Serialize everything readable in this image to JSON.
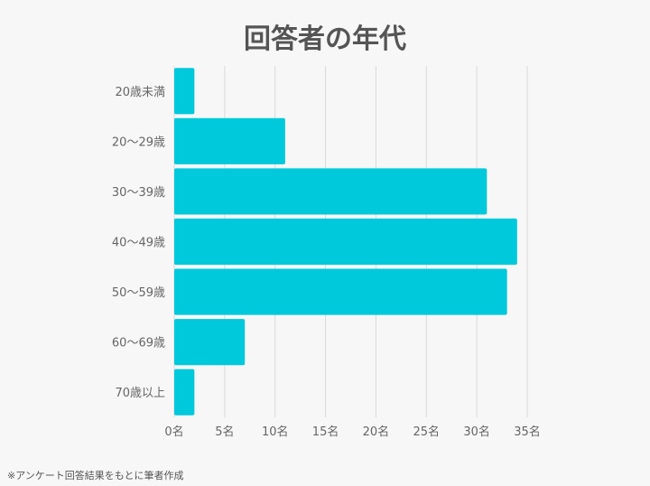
{
  "chart_data": {
    "type": "bar",
    "orientation": "horizontal",
    "title": "回答者の年代",
    "categories": [
      "20歳未満",
      "20〜29歳",
      "30〜39歳",
      "40〜49歳",
      "50〜59歳",
      "60〜69歳",
      "70歳以上"
    ],
    "values": [
      2,
      11,
      31,
      34,
      33,
      7,
      2
    ],
    "xlim": [
      0,
      35
    ],
    "xticks": [
      0,
      5,
      10,
      15,
      20,
      25,
      30,
      35
    ],
    "xtick_labels": [
      "0名",
      "5名",
      "10名",
      "15名",
      "20名",
      "25名",
      "30名",
      "35名"
    ],
    "grid": "vertical",
    "bar_color": "#00c9dc",
    "grid_color": "#d9d9d9"
  },
  "footnote": "※アンケート回答結果をもとに筆者作成"
}
